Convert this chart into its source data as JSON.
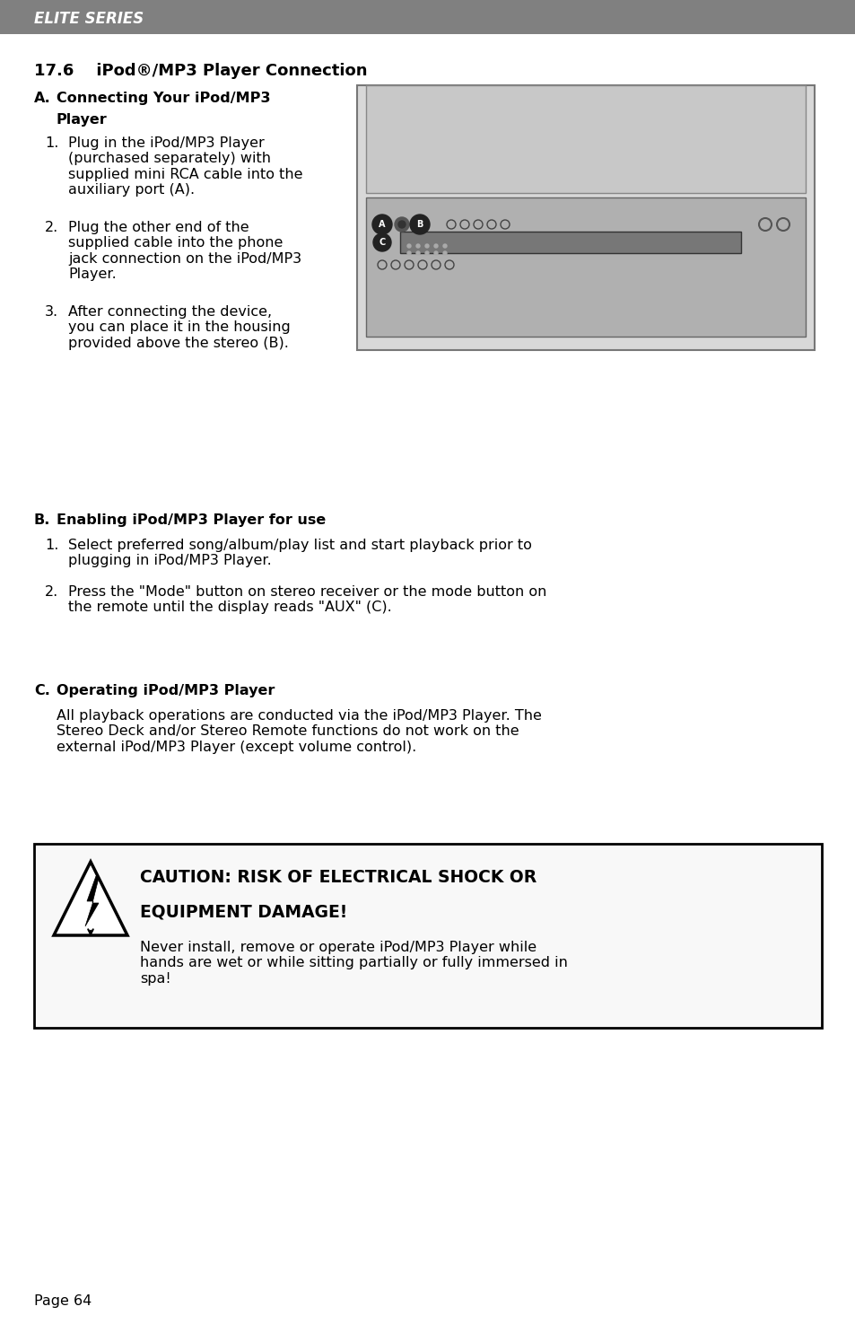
{
  "bg_color": "#ffffff",
  "header_bg": "#888888",
  "header_text": "ELITE SERIES",
  "header_text_color": "#ffffff",
  "body_font_size": 11.5,
  "title_font_size": 13,
  "header_font_size": 12,
  "page_number": "Page 64",
  "section_title": "17.6    iPod®/MP3 Player Connection",
  "section_A_items": [
    "Plug in the iPod/MP3 Player\n(purchased separately) with\nsupplied mini RCA cable into the\nauxiliary port (A).",
    "Plug the other end of the\nsupplied cable into the phone\njack connection on the iPod/MP3\nPlayer.",
    "After connecting the device,\nyou can place it in the housing\nprovided above the stereo (B)."
  ],
  "section_B_title": "Enabling iPod/MP3 Player for use",
  "section_B_items": [
    "Select preferred song/album/play list and start playback prior to\nplugging in iPod/MP3 Player.",
    "Press the \"Mode\" button on stereo receiver or the mode button on\nthe remote until the display reads \"AUX\" (C)."
  ],
  "section_C_title": "Operating iPod/MP3 Player",
  "section_C_body": "All playback operations are conducted via the iPod/MP3 Player. The\nStereo Deck and/or Stereo Remote functions do not work on the\nexternal iPod/MP3 Player (except volume control).",
  "caution_title_line1": "CAUTION: RISK OF ELECTRICAL SHOCK OR",
  "caution_title_line2": "EQUIPMENT DAMAGE!",
  "caution_body": "Never install, remove or operate iPod/MP3 Player while\nhands are wet or while sitting partially or fully immersed in\nspa!"
}
